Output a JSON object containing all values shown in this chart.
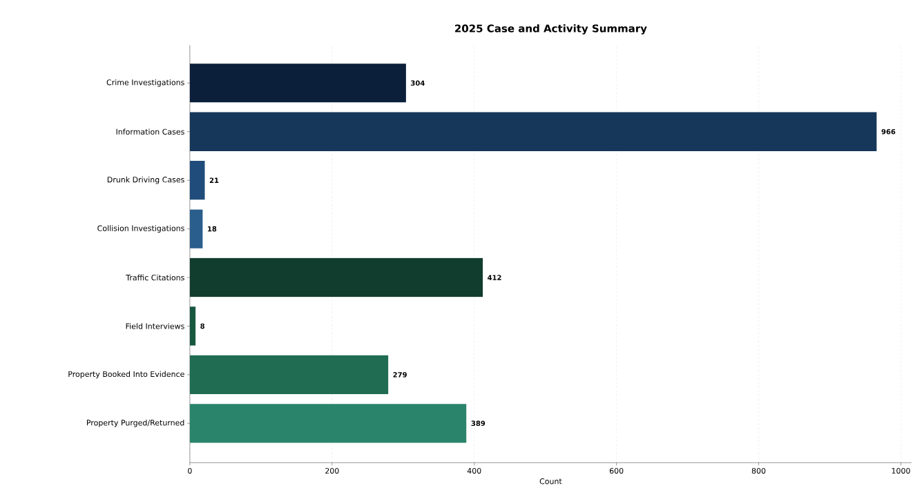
{
  "chart_data": {
    "type": "bar",
    "orientation": "horizontal",
    "title": "2025 Case and Activity Summary",
    "xlabel": "Count",
    "categories": [
      "Crime Investigations",
      "Information Cases",
      "Drunk Driving Cases",
      "Collision Investigations",
      "Traffic Citations",
      "Field Interviews",
      "Property Booked Into Evidence",
      "Property Purged/Returned"
    ],
    "values": [
      304,
      966,
      21,
      18,
      412,
      8,
      279,
      389
    ],
    "colors": [
      "#0b1f3a",
      "#163759",
      "#1f4c7a",
      "#2a5e8c",
      "#113d2e",
      "#17573f",
      "#1f6c52",
      "#2a846b"
    ],
    "xlim": [
      0,
      1015
    ],
    "xticks": [
      0,
      200,
      400,
      600,
      800,
      1000
    ],
    "grid": "x",
    "data_labels": true
  }
}
